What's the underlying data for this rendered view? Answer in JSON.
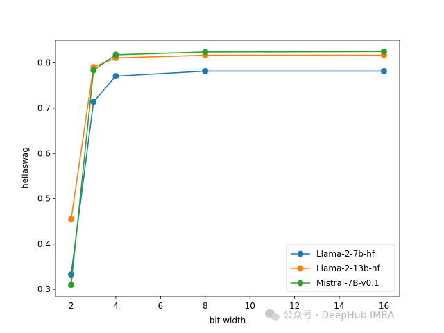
{
  "chart_data": {
    "type": "line",
    "xlabel": "bit width",
    "ylabel": "hellaswag",
    "xlim": [
      1.3,
      16.7
    ],
    "ylim": [
      0.285,
      0.85
    ],
    "xticks": [
      2,
      4,
      6,
      8,
      10,
      12,
      14,
      16
    ],
    "yticks": [
      0.3,
      0.4,
      0.5,
      0.6,
      0.7,
      0.8
    ],
    "ytick_labels": [
      "0.3",
      "0.4",
      "0.5",
      "0.6",
      "0.7",
      "0.8"
    ],
    "grid": false,
    "legend_position": "bottom-right",
    "x": [
      2,
      3,
      4,
      8,
      16
    ],
    "series": [
      {
        "name": "Llama-2-7b-hf",
        "color": "#1f77b4",
        "values": [
          0.333,
          0.714,
          0.771,
          0.782,
          0.782
        ]
      },
      {
        "name": "Llama-2-13b-hf",
        "color": "#ff7f0e",
        "values": [
          0.455,
          0.791,
          0.811,
          0.817,
          0.817
        ]
      },
      {
        "name": "Mistral-7B-v0.1",
        "color": "#2ca02c",
        "values": [
          0.31,
          0.784,
          0.818,
          0.824,
          0.825
        ]
      }
    ]
  },
  "watermark": {
    "icon": "wechat-icon",
    "text": "公众号 · DeepHub IMBA"
  }
}
